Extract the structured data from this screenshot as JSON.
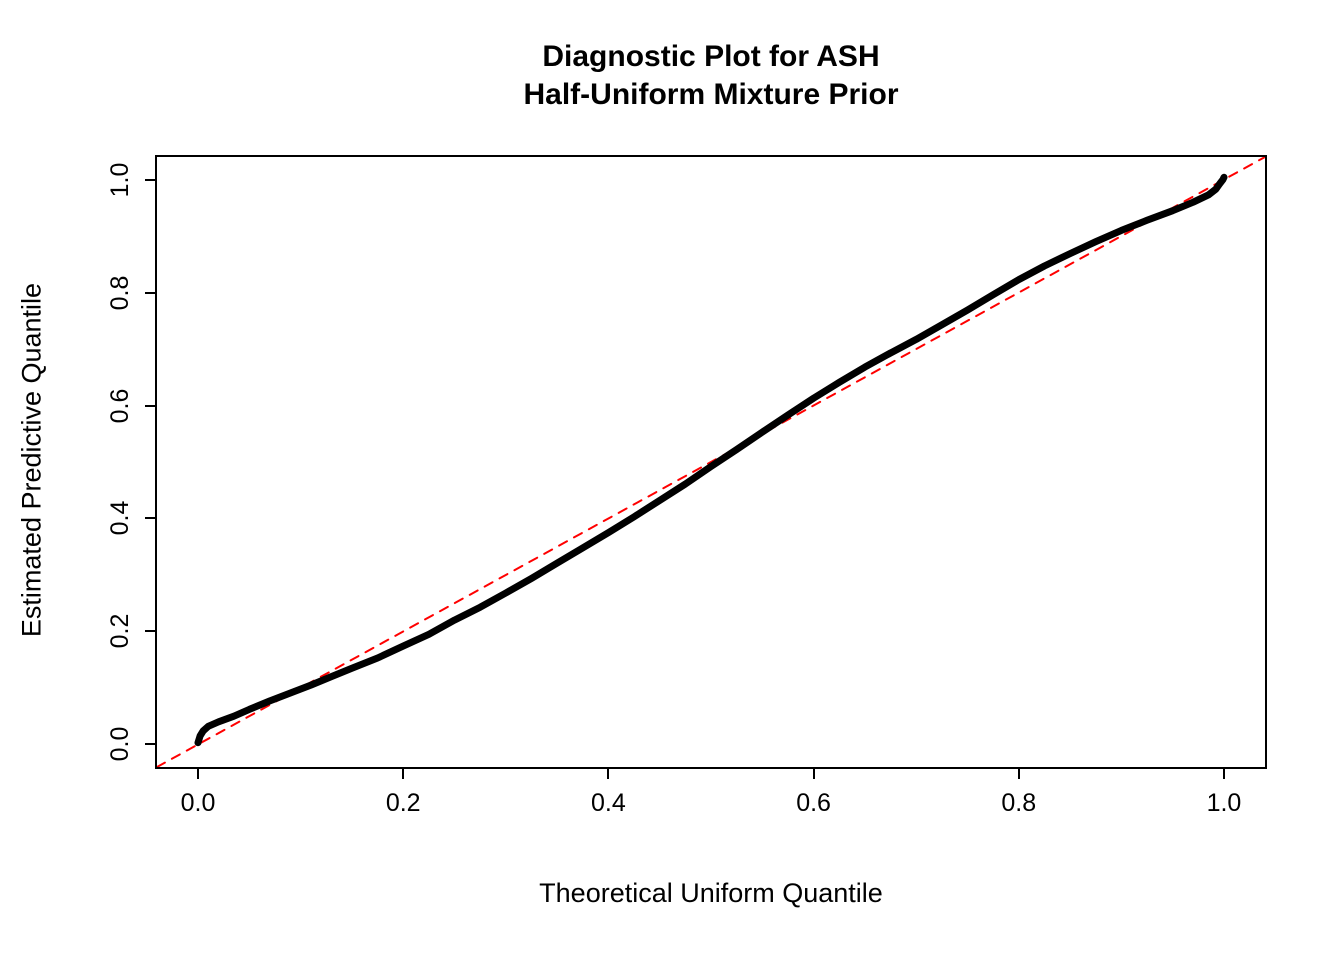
{
  "chart_data": {
    "type": "line",
    "subtype": "qq-plot",
    "title": "Diagnostic Plot for ASH Half-Uniform Mixture Prior",
    "title_line1": "Diagnostic Plot for ASH",
    "title_line2": "Half-Uniform Mixture Prior",
    "xlabel": "Theoretical Uniform Quantile",
    "ylabel": "Estimated Predictive Quantile",
    "xlim": [
      -0.04,
      1.04
    ],
    "ylim": [
      -0.04,
      1.04
    ],
    "grid": false,
    "legend": "none",
    "xticks": {
      "values": [
        0.0,
        0.2,
        0.4,
        0.6,
        0.8,
        1.0
      ],
      "labels": [
        "0.0",
        "0.2",
        "0.4",
        "0.6",
        "0.8",
        "1.0"
      ]
    },
    "yticks": {
      "values": [
        0.0,
        0.2,
        0.4,
        0.6,
        0.8,
        1.0
      ],
      "labels": [
        "0.0",
        "0.2",
        "0.4",
        "0.6",
        "0.8",
        "1.0"
      ]
    },
    "series": [
      {
        "name": "reference-identity-line",
        "color": "#FF0000",
        "width": 2,
        "dash": "9 8",
        "points": [
          [
            -0.04,
            -0.04
          ],
          [
            1.04,
            1.04
          ]
        ]
      },
      {
        "name": "estimated-vs-theoretical-quantiles",
        "color": "#000000",
        "width": 7,
        "dash": null,
        "points": [
          [
            0.0,
            0.003
          ],
          [
            0.002,
            0.015
          ],
          [
            0.005,
            0.024
          ],
          [
            0.01,
            0.032
          ],
          [
            0.02,
            0.04
          ],
          [
            0.035,
            0.05
          ],
          [
            0.05,
            0.062
          ],
          [
            0.07,
            0.077
          ],
          [
            0.09,
            0.091
          ],
          [
            0.11,
            0.105
          ],
          [
            0.13,
            0.12
          ],
          [
            0.15,
            0.135
          ],
          [
            0.175,
            0.153
          ],
          [
            0.2,
            0.174
          ],
          [
            0.225,
            0.195
          ],
          [
            0.25,
            0.22
          ],
          [
            0.275,
            0.243
          ],
          [
            0.3,
            0.268
          ],
          [
            0.325,
            0.294
          ],
          [
            0.35,
            0.321
          ],
          [
            0.375,
            0.348
          ],
          [
            0.4,
            0.375
          ],
          [
            0.425,
            0.403
          ],
          [
            0.45,
            0.432
          ],
          [
            0.475,
            0.461
          ],
          [
            0.5,
            0.492
          ],
          [
            0.525,
            0.522
          ],
          [
            0.55,
            0.553
          ],
          [
            0.575,
            0.583
          ],
          [
            0.6,
            0.613
          ],
          [
            0.625,
            0.641
          ],
          [
            0.65,
            0.668
          ],
          [
            0.675,
            0.693
          ],
          [
            0.7,
            0.717
          ],
          [
            0.725,
            0.743
          ],
          [
            0.75,
            0.769
          ],
          [
            0.775,
            0.796
          ],
          [
            0.8,
            0.823
          ],
          [
            0.825,
            0.847
          ],
          [
            0.85,
            0.869
          ],
          [
            0.875,
            0.89
          ],
          [
            0.9,
            0.91
          ],
          [
            0.925,
            0.928
          ],
          [
            0.95,
            0.945
          ],
          [
            0.97,
            0.96
          ],
          [
            0.985,
            0.973
          ],
          [
            0.992,
            0.983
          ],
          [
            0.996,
            0.993
          ],
          [
            0.999,
            1.0
          ],
          [
            1.0,
            1.004
          ]
        ]
      }
    ]
  }
}
